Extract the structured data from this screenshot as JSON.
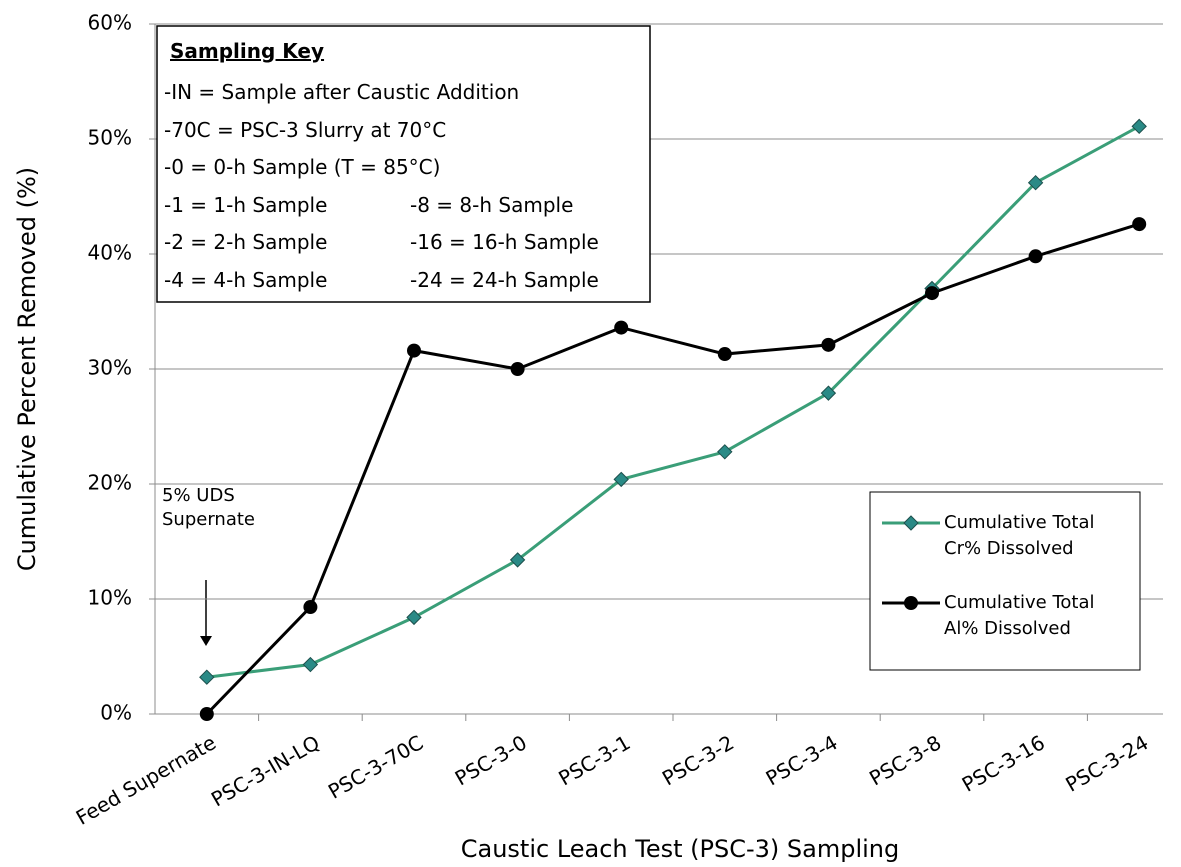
{
  "chart_data": {
    "type": "line",
    "x_label": "Caustic Leach Test (PSC-3) Sampling",
    "y_label": "Cumulative  Percent Removed (%)",
    "categories": [
      "Feed Supernate",
      "PSC-3-IN-LQ",
      "PSC-3-70C",
      "PSC-3-0",
      "PSC-3-1",
      "PSC-3-2",
      "PSC-3-4",
      "PSC-3-8",
      "PSC-3-16",
      "PSC-3-24"
    ],
    "series": [
      {
        "name": "Cumulative Total Cr% Dissolved",
        "color": "#3a9e78",
        "marker_color": "#2a8a86",
        "marker": "diamond",
        "values": [
          3.2,
          4.3,
          8.4,
          13.4,
          20.4,
          22.8,
          27.9,
          37.0,
          46.2,
          51.1
        ]
      },
      {
        "name": "Cumulative Total Al% Dissolved",
        "color": "#000000",
        "marker_color": "#000000",
        "marker": "circle",
        "values": [
          0.0,
          9.3,
          31.6,
          30.0,
          33.6,
          31.3,
          32.1,
          36.6,
          39.8,
          42.6
        ]
      }
    ],
    "ylim": [
      0,
      60
    ],
    "yticks": [
      {
        "value": 0,
        "label": "0%"
      },
      {
        "value": 10,
        "label": "10%"
      },
      {
        "value": 20,
        "label": "20%"
      },
      {
        "value": 30,
        "label": "30%"
      },
      {
        "value": 40,
        "label": "40%"
      },
      {
        "value": 50,
        "label": "50%"
      },
      {
        "value": 60,
        "label": "60%"
      }
    ],
    "grid": true,
    "legend": "lower right",
    "annotation": "5% UDS Supernate",
    "key": {
      "title": "Sampling Key",
      "rows": [
        [
          "-IN = Sample after Caustic Addition"
        ],
        [
          "-70C = PSC-3 Slurry at 70°C"
        ],
        [
          "-0 = 0-h Sample (T = 85°C)"
        ],
        [
          "-1 = 1-h Sample",
          "-8 = 8-h Sample"
        ],
        [
          "-2 = 2-h Sample",
          "-16 = 16-h Sample"
        ],
        [
          "-4 = 4-h Sample",
          "-24 = 24-h Sample"
        ]
      ]
    }
  }
}
